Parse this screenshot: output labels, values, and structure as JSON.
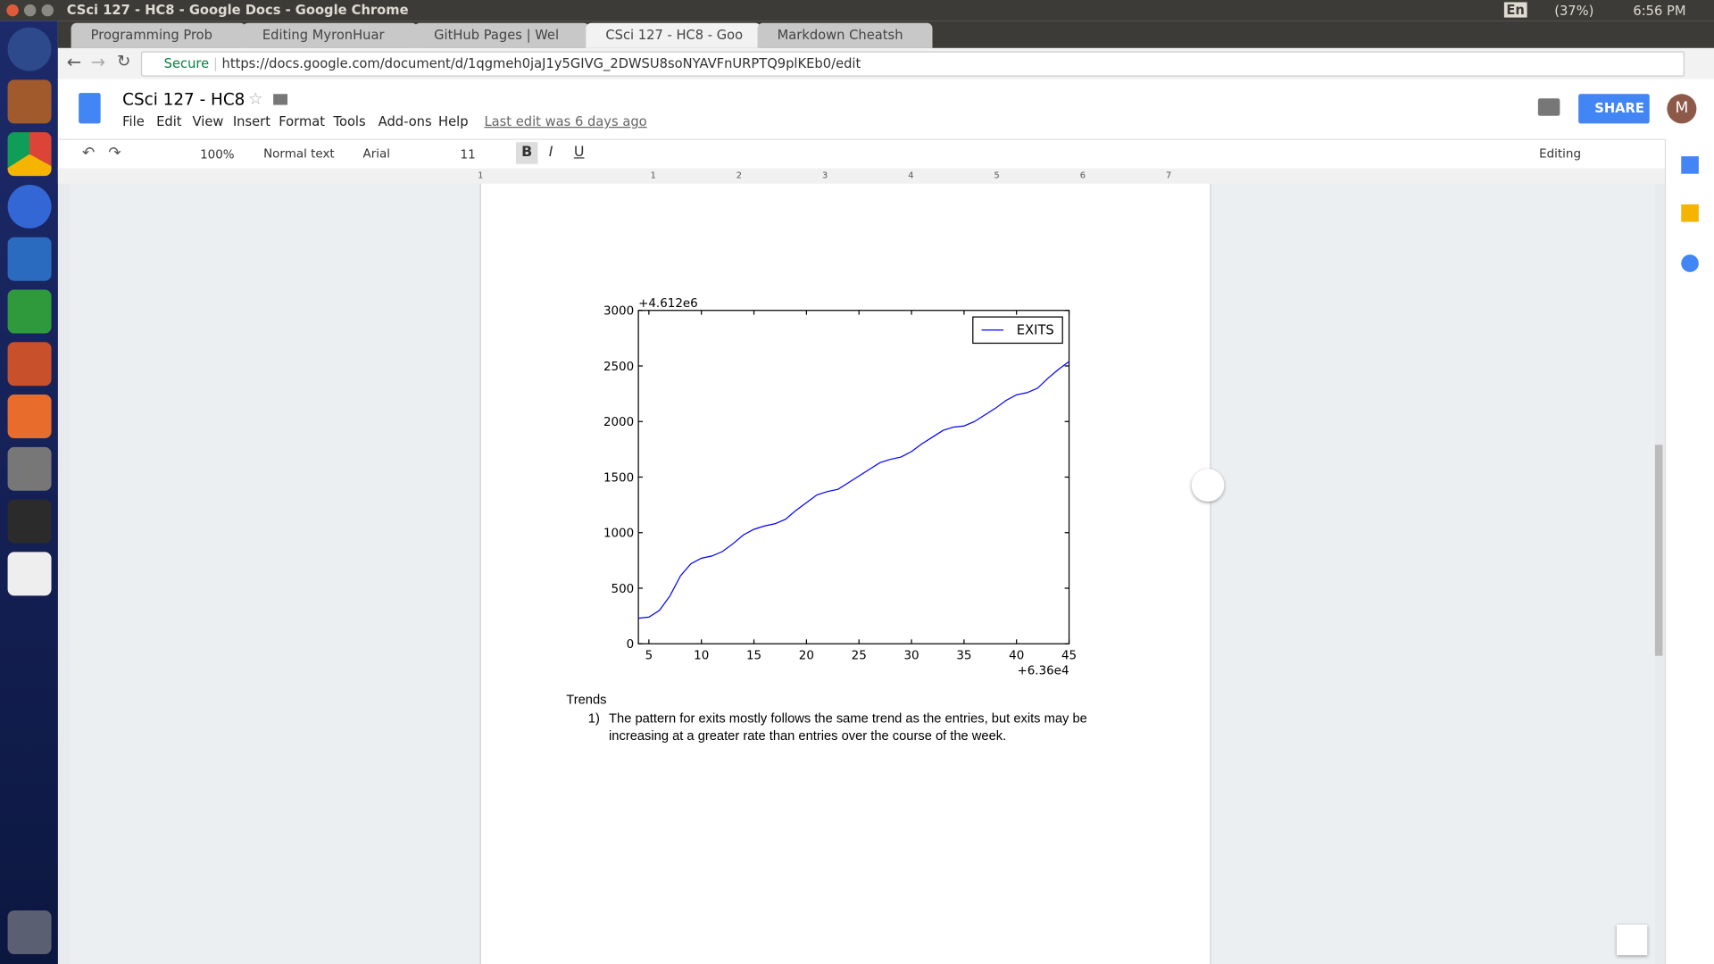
{
  "window": {
    "title": "CSci 127 - HC8 - Google Docs - Google Chrome",
    "language": "En",
    "battery": "(37%)",
    "time": "6:56 PM"
  },
  "tabs": [
    "Programming Prob",
    "Editing MyronHuar",
    "GitHub Pages | Wel",
    "CSci 127 - HC8 - Goo",
    "Markdown Cheatsh"
  ],
  "address": {
    "secure": "Secure",
    "url": "https://docs.google.com/document/d/1qgmeh0jaJ1y5GIVG_2DWSU8soNYAVFnURPTQ9plKEb0/edit"
  },
  "doc": {
    "title": "CSci 127 - HC8",
    "menu": [
      "File",
      "Edit",
      "View",
      "Insert",
      "Format",
      "Tools",
      "Add-ons",
      "Help"
    ],
    "last_edit": "Last edit was 6 days ago",
    "share": "SHARE",
    "avatar": "M"
  },
  "toolbar": {
    "zoom": "100%",
    "style": "Normal text",
    "font": "Arial",
    "size": "11",
    "mode": "Editing"
  },
  "ruler": [
    "1",
    "1",
    "2",
    "3",
    "4",
    "5",
    "6",
    "7"
  ],
  "chart_data": {
    "type": "line",
    "x_offset_label": "+6.36e4",
    "y_offset_label": "+4.612e6",
    "x": [
      4,
      5,
      6,
      7,
      8,
      9,
      10,
      11,
      12,
      13,
      14,
      15,
      16,
      17,
      18,
      19,
      20,
      21,
      22,
      23,
      24,
      25,
      26,
      27,
      28,
      29,
      30,
      31,
      32,
      33,
      34,
      35,
      36,
      37,
      38,
      39,
      40,
      41,
      42,
      43,
      44,
      45
    ],
    "series": [
      {
        "name": "EXITS",
        "color": "#0000ff",
        "values": [
          230,
          240,
          300,
          430,
          610,
          720,
          770,
          790,
          830,
          900,
          980,
          1030,
          1060,
          1080,
          1120,
          1200,
          1270,
          1340,
          1370,
          1390,
          1450,
          1510,
          1570,
          1630,
          1660,
          1680,
          1730,
          1800,
          1860,
          1920,
          1950,
          1960,
          2000,
          2060,
          2120,
          2190,
          2240,
          2260,
          2300,
          2390,
          2470,
          2540
        ]
      }
    ],
    "xlim": [
      4,
      45
    ],
    "ylim": [
      0,
      3000
    ],
    "xticks": [
      5,
      10,
      15,
      20,
      25,
      30,
      35,
      40,
      45
    ],
    "yticks": [
      0,
      500,
      1000,
      1500,
      2000,
      2500,
      3000
    ],
    "legend": "upper right"
  },
  "body": {
    "heading": "Trends",
    "items": [
      {
        "marker": "1)",
        "text": "The pattern for exits mostly follows the same trend as the entries, but exits may be increasing at a greater rate than entries over the course of the week."
      }
    ]
  }
}
